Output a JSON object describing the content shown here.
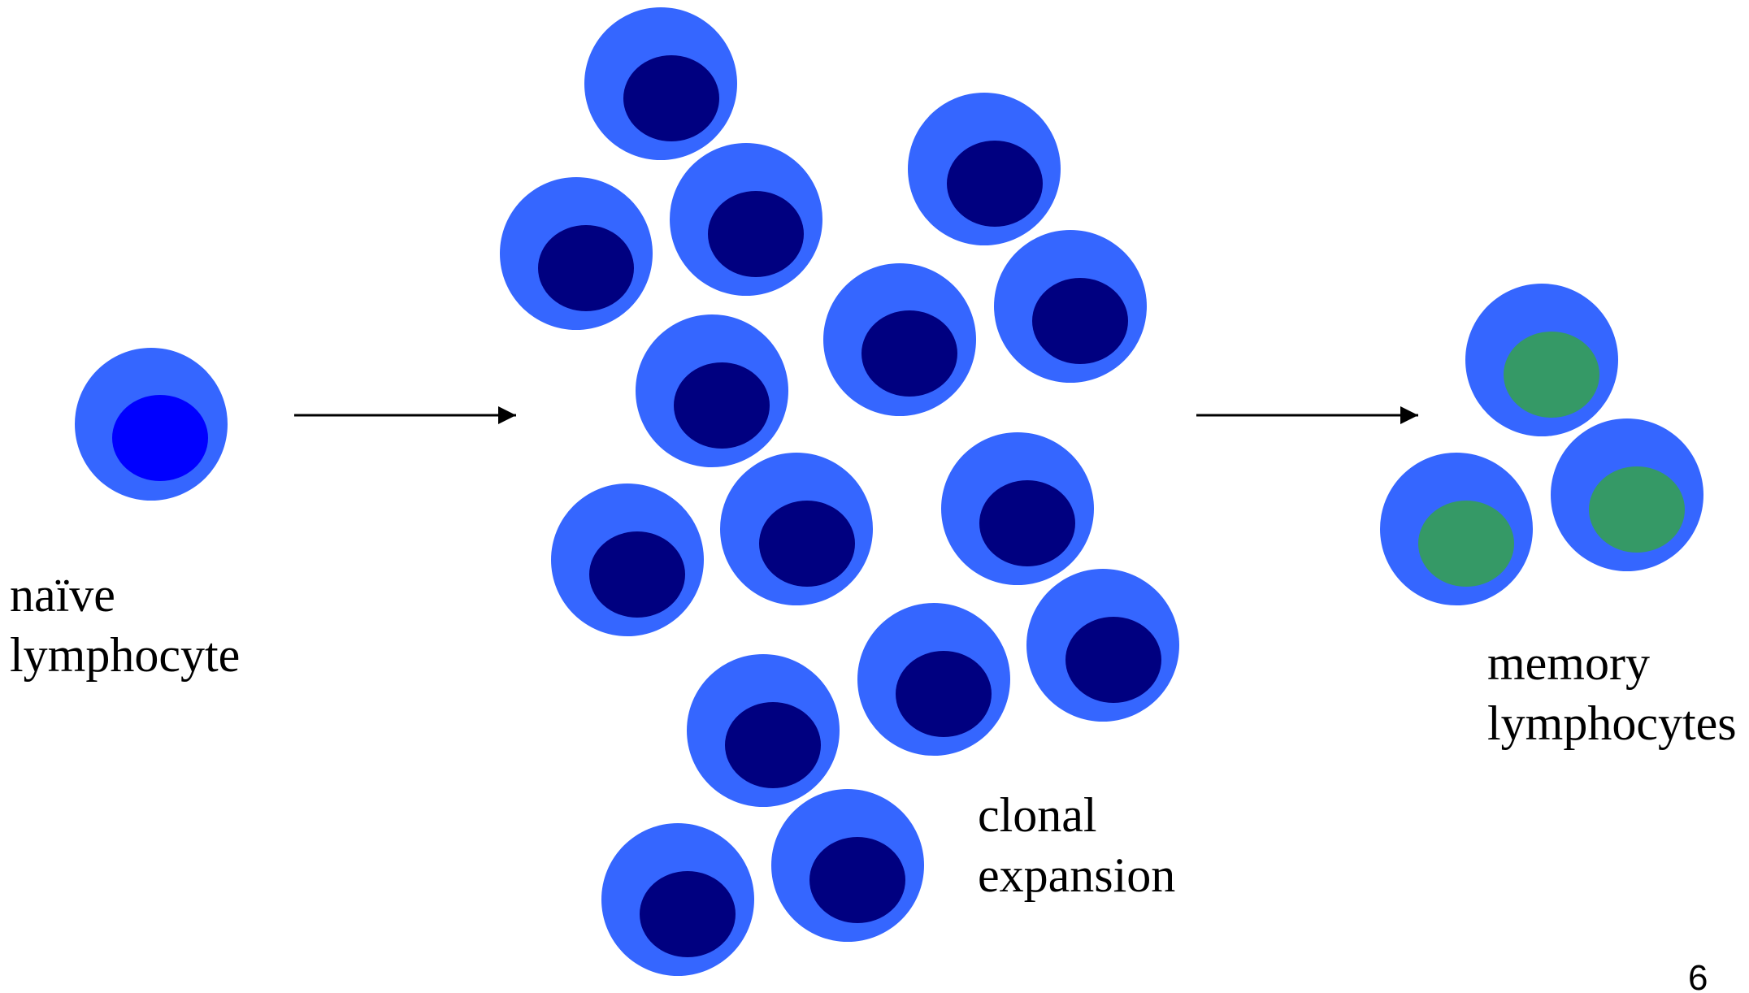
{
  "labels": {
    "naive": [
      "naïve",
      "lymphocyte"
    ],
    "clonal": [
      "clonal",
      "expansion"
    ],
    "memory": [
      "memory",
      "lymphocytes"
    ]
  },
  "page_number": "6",
  "colors": {
    "cytoplasm": "#3566FF",
    "naive_nucleus": "#0000FF",
    "expanded_nucleus": "#000080",
    "memory_nucleus": "#359966",
    "arrow": "#000000"
  }
}
